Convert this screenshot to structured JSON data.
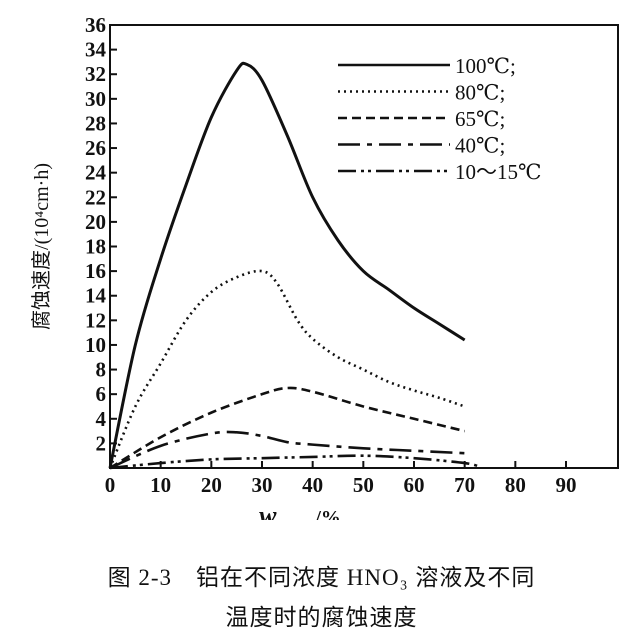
{
  "chart_data": {
    "type": "line",
    "xlabel_main": "w",
    "xlabel_sub": "HNO3",
    "xlabel_unit": "/%",
    "ylabel": "腐蚀速度/(10⁴cm·h)",
    "xlim": [
      0,
      100
    ],
    "ylim": [
      0,
      36
    ],
    "xticks": [
      0,
      10,
      20,
      30,
      40,
      50,
      60,
      70,
      80,
      90
    ],
    "yticks": [
      2,
      4,
      6,
      8,
      10,
      12,
      14,
      16,
      18,
      20,
      22,
      24,
      26,
      28,
      30,
      32,
      34,
      36
    ],
    "grid": false,
    "legend_position": "top-right",
    "series": [
      {
        "name": "100℃;",
        "style": "solid",
        "x": [
          0,
          5,
          10,
          15,
          20,
          25,
          27,
          30,
          35,
          40,
          45,
          50,
          55,
          60,
          65,
          70
        ],
        "y": [
          0,
          10,
          17,
          23,
          28.5,
          32.3,
          32.8,
          31.5,
          27,
          22,
          18.5,
          16,
          14.5,
          13,
          11.7,
          10.4
        ]
      },
      {
        "name": "80℃;",
        "style": "dotted",
        "x": [
          0,
          5,
          10,
          15,
          20,
          25,
          30,
          33,
          37,
          40,
          45,
          50,
          55,
          60,
          65,
          70
        ],
        "y": [
          0,
          5,
          8.5,
          12,
          14.3,
          15.5,
          16,
          15,
          12,
          10.5,
          9,
          8,
          7,
          6.3,
          5.7,
          5
        ]
      },
      {
        "name": "65℃;",
        "style": "dashed",
        "x": [
          0,
          10,
          20,
          30,
          35,
          40,
          50,
          60,
          70
        ],
        "y": [
          0,
          2.5,
          4.5,
          6,
          6.5,
          6.2,
          5,
          4,
          3
        ]
      },
      {
        "name": "40℃;",
        "style": "dash-dot",
        "x": [
          0,
          10,
          20,
          25,
          30,
          35,
          40,
          50,
          60,
          70
        ],
        "y": [
          0,
          1.8,
          2.8,
          2.9,
          2.6,
          2.1,
          1.9,
          1.6,
          1.4,
          1.2
        ]
      },
      {
        "name": "10～15℃",
        "style": "dash-dot-dot",
        "x": [
          0,
          10,
          20,
          30,
          40,
          50,
          60,
          70,
          73
        ],
        "y": [
          0,
          0.4,
          0.7,
          0.8,
          0.9,
          1.0,
          0.8,
          0.4,
          0.1
        ]
      }
    ]
  },
  "caption": {
    "line1": "图 2-3　铝在不同浓度 HNO₃ 溶液及不同",
    "line2": "温度时的腐蚀速度"
  }
}
